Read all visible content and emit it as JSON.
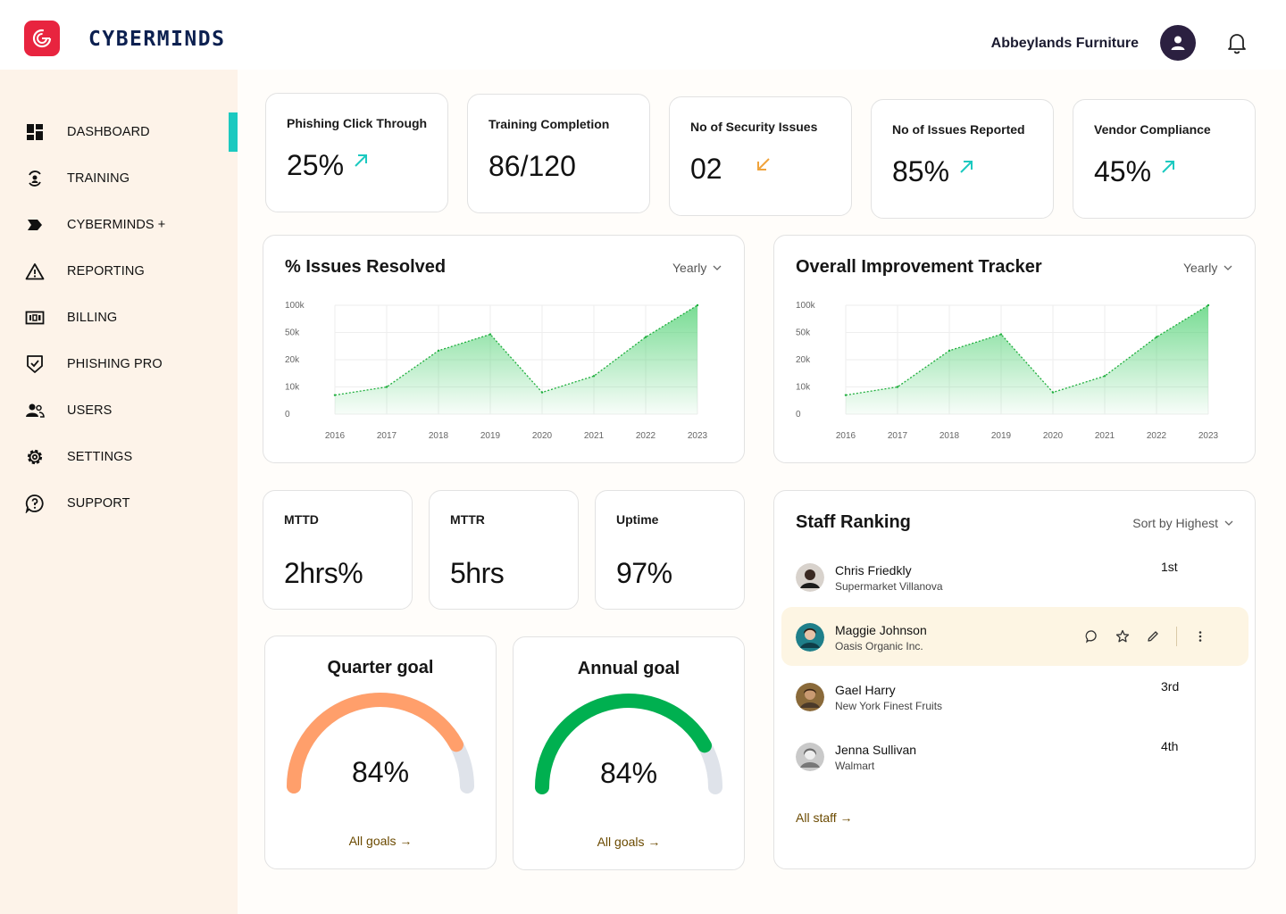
{
  "header": {
    "logo_text": "CYBERMINDS",
    "company": "Abbeylands Furniture"
  },
  "sidebar": {
    "items": [
      {
        "label": "DASHBOARD",
        "icon": "dashboard-grid-icon",
        "active": true
      },
      {
        "label": "TRAINING",
        "icon": "training-icon"
      },
      {
        "label": "CYBERMINDS +",
        "icon": "tag-icon"
      },
      {
        "label": "REPORTING",
        "icon": "warning-triangle-icon"
      },
      {
        "label": "BILLING",
        "icon": "billing-icon"
      },
      {
        "label": "PHISHING PRO",
        "icon": "shield-check-icon"
      },
      {
        "label": "USERS",
        "icon": "users-icon"
      },
      {
        "label": "SETTINGS",
        "icon": "gear-icon"
      },
      {
        "label": "SUPPORT",
        "icon": "help-icon"
      }
    ]
  },
  "stats": [
    {
      "title": "Phishing Click Through",
      "value": "25%",
      "trend": "up"
    },
    {
      "title": "Training Completion",
      "value": "86/120",
      "trend": "none"
    },
    {
      "title": "No of Security Issues",
      "value": "02",
      "trend": "down"
    },
    {
      "title": "No of Issues Reported",
      "value": "85%",
      "trend": "up"
    },
    {
      "title": "Vendor Compliance",
      "value": "45%",
      "trend": "up"
    }
  ],
  "colors": {
    "accent": "#1bc9c0",
    "trend_up": "#1bc9c0",
    "trend_down": "#f0a33c",
    "quarter_gauge": "#ff9f6b",
    "annual_gauge": "#00b050",
    "chart_fill": "#4cd070"
  },
  "chart_data": [
    {
      "type": "area",
      "title": "% Issues Resolved",
      "filter": "Yearly",
      "x": [
        "2016",
        "2017",
        "2018",
        "2019",
        "2020",
        "2021",
        "2022",
        "2023"
      ],
      "y_ticks": [
        "100k",
        "50k",
        "20k",
        "10k",
        "0"
      ],
      "values": [
        7000,
        10000,
        30000,
        48000,
        8000,
        14000,
        45000,
        100000
      ]
    },
    {
      "type": "area",
      "title": "Overall Improvement Tracker",
      "filter": "Yearly",
      "x": [
        "2016",
        "2017",
        "2018",
        "2019",
        "2020",
        "2021",
        "2022",
        "2023"
      ],
      "y_ticks": [
        "100k",
        "50k",
        "20k",
        "10k",
        "0"
      ],
      "values": [
        7000,
        10000,
        30000,
        48000,
        8000,
        14000,
        45000,
        100000
      ]
    }
  ],
  "metrics": [
    {
      "title": "MTTD",
      "value": "2hrs%"
    },
    {
      "title": "MTTR",
      "value": "5hrs"
    },
    {
      "title": "Uptime",
      "value": "97%"
    }
  ],
  "goals": [
    {
      "title": "Quarter goal",
      "value": "84%",
      "percent": 84,
      "link": "All goals"
    },
    {
      "title": "Annual goal",
      "value": "84%",
      "percent": 84,
      "link": "All goals"
    }
  ],
  "staff_ranking": {
    "title": "Staff Ranking",
    "sort": "Sort by Highest",
    "rows": [
      {
        "name": "Chris Friedkly",
        "company": "Supermarket Villanova",
        "rank": "1st"
      },
      {
        "name": "Maggie Johnson",
        "company": "Oasis Organic Inc.",
        "rank": ""
      },
      {
        "name": "Gael Harry",
        "company": "New York Finest Fruits",
        "rank": "3rd"
      },
      {
        "name": "Jenna Sullivan",
        "company": "Walmart",
        "rank": "4th"
      }
    ],
    "all_link": "All staff"
  }
}
